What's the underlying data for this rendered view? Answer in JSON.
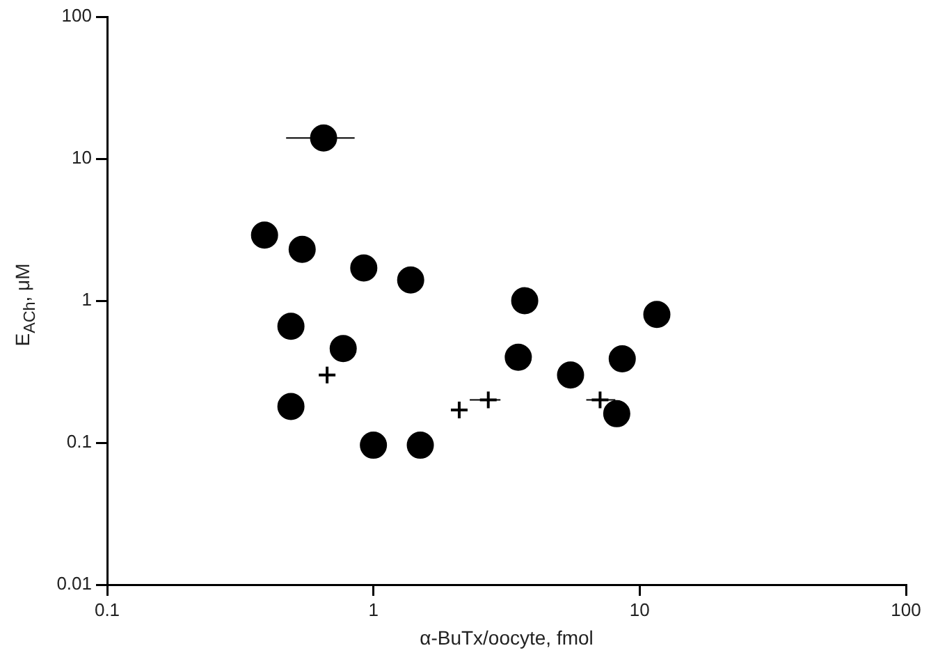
{
  "chart_data": {
    "type": "scatter",
    "xlabel": "α-BuTx/oocyte, fmol",
    "ylabel": "E$_{ACh}$, μM",
    "log": "xy",
    "grid": false,
    "legend": false,
    "marker": "circle",
    "xlim": [
      0.1,
      100
    ],
    "xticks": [
      0.1,
      1,
      10,
      100
    ],
    "ylim": [
      0.01,
      100
    ],
    "yticks": [
      0.01,
      0.1,
      1,
      10,
      100
    ],
    "series": [
      {
        "color": "#000000",
        "x": [
          0.65,
          0.39,
          0.54,
          0.92,
          1.38,
          3.7,
          11.6,
          0.49,
          0.77,
          3.5,
          5.5,
          8.6,
          0.49,
          8.2,
          1.0,
          1.5
        ],
        "values": [
          14,
          2.9,
          2.3,
          1.7,
          1.4,
          1.0,
          0.8,
          0.66,
          0.46,
          0.4,
          0.3,
          0.39,
          0.18,
          0.16,
          0.096,
          0.096
        ],
        "xerrors": [
          [
            0.47,
            0.85
          ],
          null,
          null,
          null,
          null,
          null,
          null,
          null,
          null,
          null,
          null,
          null,
          null,
          null,
          null,
          null
        ]
      },
      {
        "color": "#000000",
        "marker": "cross",
        "x": [
          0.67,
          2.1,
          2.7,
          7.1
        ],
        "values": [
          0.3,
          0.17,
          0.2,
          0.2
        ],
        "xerrors": [
          null,
          null,
          [
            2.3,
            3.0
          ],
          [
            6.3,
            8.1
          ]
        ]
      }
    ]
  }
}
